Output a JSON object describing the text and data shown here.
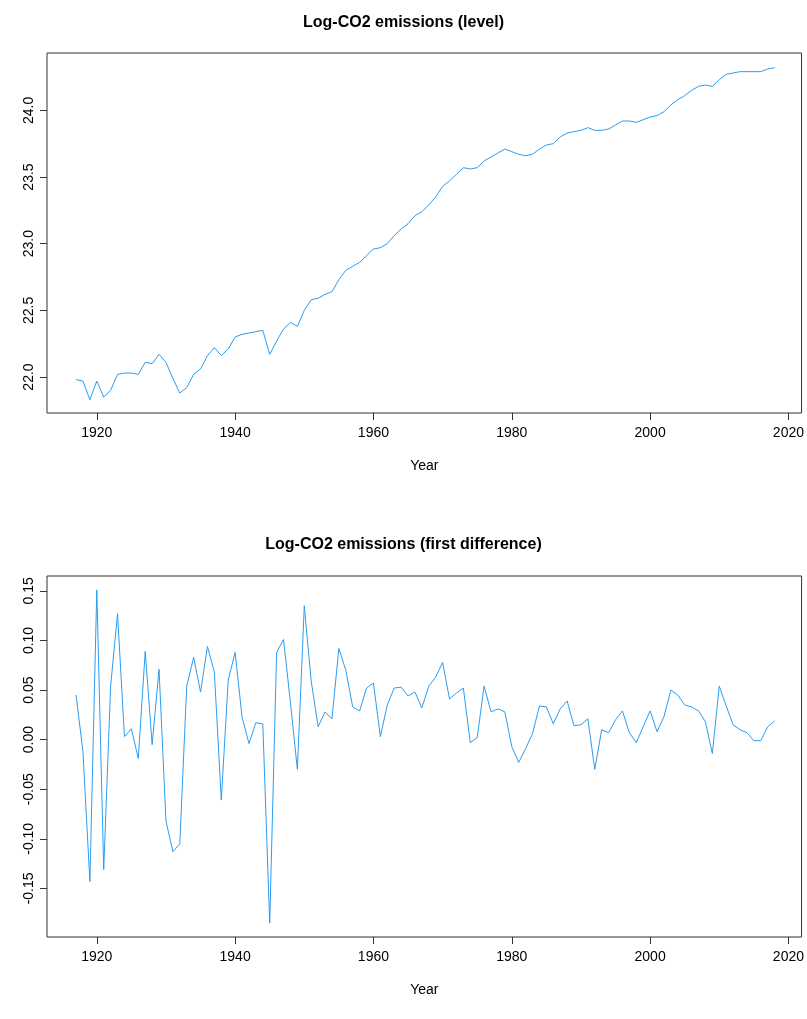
{
  "chart_data": [
    {
      "type": "line",
      "title": "Log-CO2 emissions (level)",
      "xlabel": "Year",
      "color": "#2b9cf0",
      "marker": "none",
      "line_style": "solid",
      "xlim": [
        1912.8,
        2021.9
      ],
      "xticks": [
        1920,
        1940,
        1960,
        1980,
        2000,
        2020
      ],
      "ylim": [
        21.73,
        24.43
      ],
      "yticks": [
        {
          "value": 22,
          "label": "22.0"
        },
        22.5,
        {
          "value": 23,
          "label": "23.0"
        },
        23.5,
        {
          "value": 24,
          "label": "24.0"
        }
      ],
      "x": [
        1917,
        1918,
        1919,
        1920,
        1921,
        1922,
        1923,
        1924,
        1925,
        1926,
        1927,
        1928,
        1929,
        1930,
        1931,
        1932,
        1933,
        1934,
        1935,
        1936,
        1937,
        1938,
        1939,
        1940,
        1941,
        1942,
        1943,
        1944,
        1945,
        1946,
        1947,
        1948,
        1949,
        1950,
        1951,
        1952,
        1953,
        1954,
        1955,
        1956,
        1957,
        1958,
        1959,
        1960,
        1961,
        1962,
        1963,
        1964,
        1965,
        1966,
        1967,
        1968,
        1969,
        1970,
        1971,
        1972,
        1973,
        1974,
        1975,
        1976,
        1977,
        1978,
        1979,
        1980,
        1981,
        1982,
        1983,
        1984,
        1985,
        1986,
        1987,
        1988,
        1989,
        1990,
        1991,
        1992,
        1993,
        1994,
        1995,
        1996,
        1997,
        1998,
        1999,
        2000,
        2001,
        2002,
        2003,
        2004,
        2005,
        2006,
        2007,
        2008,
        2009,
        2010,
        2011,
        2012,
        2013,
        2014,
        2015,
        2016,
        2017,
        2018
      ],
      "values": [
        21.98,
        21.97,
        21.83,
        21.97,
        21.85,
        21.9,
        22.02,
        22.03,
        22.03,
        22.02,
        22.11,
        22.1,
        22.17,
        22.11,
        21.99,
        21.88,
        21.92,
        22.02,
        22.06,
        22.16,
        22.22,
        22.16,
        22.21,
        22.3,
        22.32,
        22.33,
        22.34,
        22.35,
        22.17,
        22.27,
        22.36,
        22.41,
        22.38,
        22.5,
        22.58,
        22.59,
        22.62,
        22.64,
        22.73,
        22.8,
        22.83,
        22.86,
        22.91,
        22.96,
        22.97,
        23.0,
        23.06,
        23.11,
        23.15,
        23.21,
        23.24,
        23.29,
        23.35,
        23.43,
        23.47,
        23.52,
        23.57,
        23.56,
        23.57,
        23.62,
        23.65,
        23.68,
        23.71,
        23.69,
        23.67,
        23.66,
        23.67,
        23.71,
        23.74,
        23.75,
        23.8,
        23.83,
        23.84,
        23.85,
        23.87,
        23.85,
        23.85,
        23.86,
        23.89,
        23.92,
        23.92,
        23.91,
        23.93,
        23.95,
        23.96,
        23.99,
        24.04,
        24.08,
        24.11,
        24.15,
        24.18,
        24.19,
        24.18,
        24.23,
        24.27,
        24.28,
        24.29,
        24.29,
        24.29,
        24.29,
        24.31,
        24.32
      ]
    },
    {
      "type": "line",
      "title": "Log-CO2 emissions (first difference)",
      "xlabel": "Year",
      "color": "#2b9cf0",
      "marker": "none",
      "line_style": "solid",
      "xlim": [
        1912.8,
        2021.9
      ],
      "xticks": [
        1920,
        1940,
        1960,
        1980,
        2000,
        2020
      ],
      "ylim": [
        -0.199,
        0.165
      ],
      "yticks": [
        -0.15,
        {
          "value": -0.1,
          "label": "-0.10"
        },
        -0.05,
        {
          "value": 0,
          "label": "0.00"
        },
        0.05,
        {
          "value": 0.1,
          "label": "0.10"
        },
        0.15
      ],
      "x": [
        1917,
        1918,
        1919,
        1920,
        1921,
        1922,
        1923,
        1924,
        1925,
        1926,
        1927,
        1928,
        1929,
        1930,
        1931,
        1932,
        1933,
        1934,
        1935,
        1936,
        1937,
        1938,
        1939,
        1940,
        1941,
        1942,
        1943,
        1944,
        1945,
        1946,
        1947,
        1948,
        1949,
        1950,
        1951,
        1952,
        1953,
        1954,
        1955,
        1956,
        1957,
        1958,
        1959,
        1960,
        1961,
        1962,
        1963,
        1964,
        1965,
        1966,
        1967,
        1968,
        1969,
        1970,
        1971,
        1972,
        1973,
        1974,
        1975,
        1976,
        1977,
        1978,
        1979,
        1980,
        1981,
        1982,
        1983,
        1984,
        1985,
        1986,
        1987,
        1988,
        1989,
        1990,
        1991,
        1992,
        1993,
        1994,
        1995,
        1996,
        1997,
        1998,
        1999,
        2000,
        2001,
        2002,
        2003,
        2004,
        2005,
        2006,
        2007,
        2008,
        2009,
        2010,
        2011,
        2012,
        2013,
        2014,
        2015,
        2016,
        2017,
        2018
      ],
      "values": [
        0.045,
        -0.012,
        -0.143,
        0.151,
        -0.131,
        0.054,
        0.127,
        0.003,
        0.011,
        -0.019,
        0.089,
        -0.005,
        0.071,
        -0.082,
        -0.113,
        -0.105,
        0.054,
        0.083,
        0.048,
        0.094,
        0.068,
        -0.061,
        0.06,
        0.088,
        0.023,
        -0.004,
        0.017,
        0.016,
        -0.185,
        0.088,
        0.101,
        0.037,
        -0.03,
        0.135,
        0.059,
        0.013,
        0.028,
        0.021,
        0.092,
        0.07,
        0.033,
        0.029,
        0.052,
        0.057,
        0.003,
        0.035,
        0.052,
        0.053,
        0.044,
        0.048,
        0.032,
        0.054,
        0.063,
        0.078,
        0.041,
        0.047,
        0.052,
        -0.003,
        0.002,
        0.054,
        0.028,
        0.031,
        0.028,
        -0.007,
        -0.023,
        -0.009,
        0.006,
        0.034,
        0.033,
        0.016,
        0.031,
        0.039,
        0.014,
        0.015,
        0.021,
        -0.03,
        0.01,
        0.007,
        0.02,
        0.029,
        0.007,
        -0.003,
        0.013,
        0.029,
        0.008,
        0.023,
        0.05,
        0.045,
        0.035,
        0.033,
        0.029,
        0.018,
        -0.014,
        0.054,
        0.034,
        0.015,
        0.01,
        0.007,
        -0.001,
        -0.001,
        0.013,
        0.019
      ]
    }
  ]
}
